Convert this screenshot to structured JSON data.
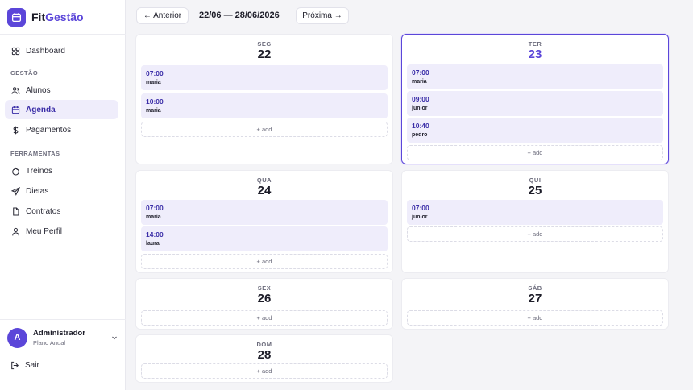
{
  "brand": {
    "name_a": "Fit",
    "name_b": "Gestão",
    "color": "#5b46d9",
    "icon": "calendar-icon"
  },
  "sidebar": {
    "dashboard": "Dashboard",
    "section_gestao": "GESTÃO",
    "alunos": "Alunos",
    "agenda": "Agenda",
    "pagamentos": "Pagamentos",
    "section_ferramentas": "FERRAMENTAS",
    "treinos": "Treinos",
    "dietas": "Dietas",
    "contratos": "Contratos",
    "perfil": "Meu Perfil"
  },
  "user": {
    "initial": "A",
    "name": "Administrador",
    "plan": "Plano Anual",
    "logout": "Sair"
  },
  "topbar": {
    "prev": "← Anterior",
    "range": "22/06 — 28/06/2026",
    "next": "Próxima →"
  },
  "days": [
    {
      "dow": "SEG",
      "num": "22",
      "today": false,
      "slots": [
        {
          "time": "07:00",
          "name": "maria"
        },
        {
          "time": "10:00",
          "name": "maria"
        }
      ],
      "add": "+ add"
    },
    {
      "dow": "TER",
      "num": "23",
      "today": true,
      "slots": [
        {
          "time": "07:00",
          "name": "maria"
        },
        {
          "time": "09:00",
          "name": "junior"
        },
        {
          "time": "10:40",
          "name": "pedro"
        }
      ],
      "add": "+ add"
    },
    {
      "dow": "QUA",
      "num": "24",
      "today": false,
      "slots": [
        {
          "time": "07:00",
          "name": "maria"
        },
        {
          "time": "14:00",
          "name": "laura"
        }
      ],
      "add": "+ add"
    },
    {
      "dow": "QUI",
      "num": "25",
      "today": false,
      "slots": [
        {
          "time": "07:00",
          "name": "junior"
        }
      ],
      "add": "+ add"
    },
    {
      "dow": "SEX",
      "num": "26",
      "today": false,
      "slots": [],
      "add": "+ add"
    },
    {
      "dow": "SÁB",
      "num": "27",
      "today": false,
      "slots": [],
      "add": "+ add"
    },
    {
      "dow": "DOM",
      "num": "28",
      "today": false,
      "slots": [],
      "add": "+ add"
    }
  ]
}
